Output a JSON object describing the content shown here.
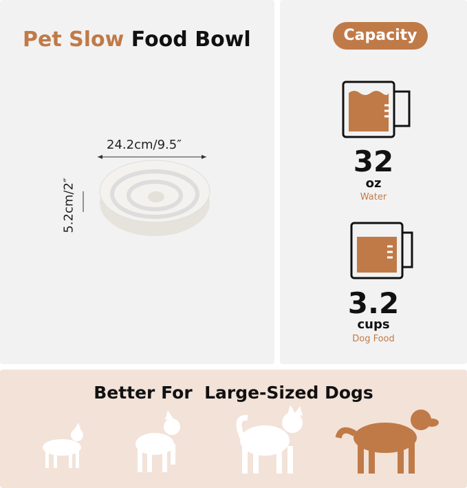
{
  "header": {
    "title_accent": "Pet Slow",
    "title_rest": "Food Bowl"
  },
  "bowl": {
    "width_label": "24.2cm/9.5″",
    "height_label": "5.2cm/2″"
  },
  "capacity": {
    "badge": "Capacity",
    "items": [
      {
        "amount": "32",
        "unit": "oz",
        "label": "Water"
      },
      {
        "amount": "3.2",
        "unit": "cups",
        "label": "Dog Food"
      }
    ]
  },
  "footer": {
    "title": "Better For  Large-Sized Dogs"
  }
}
